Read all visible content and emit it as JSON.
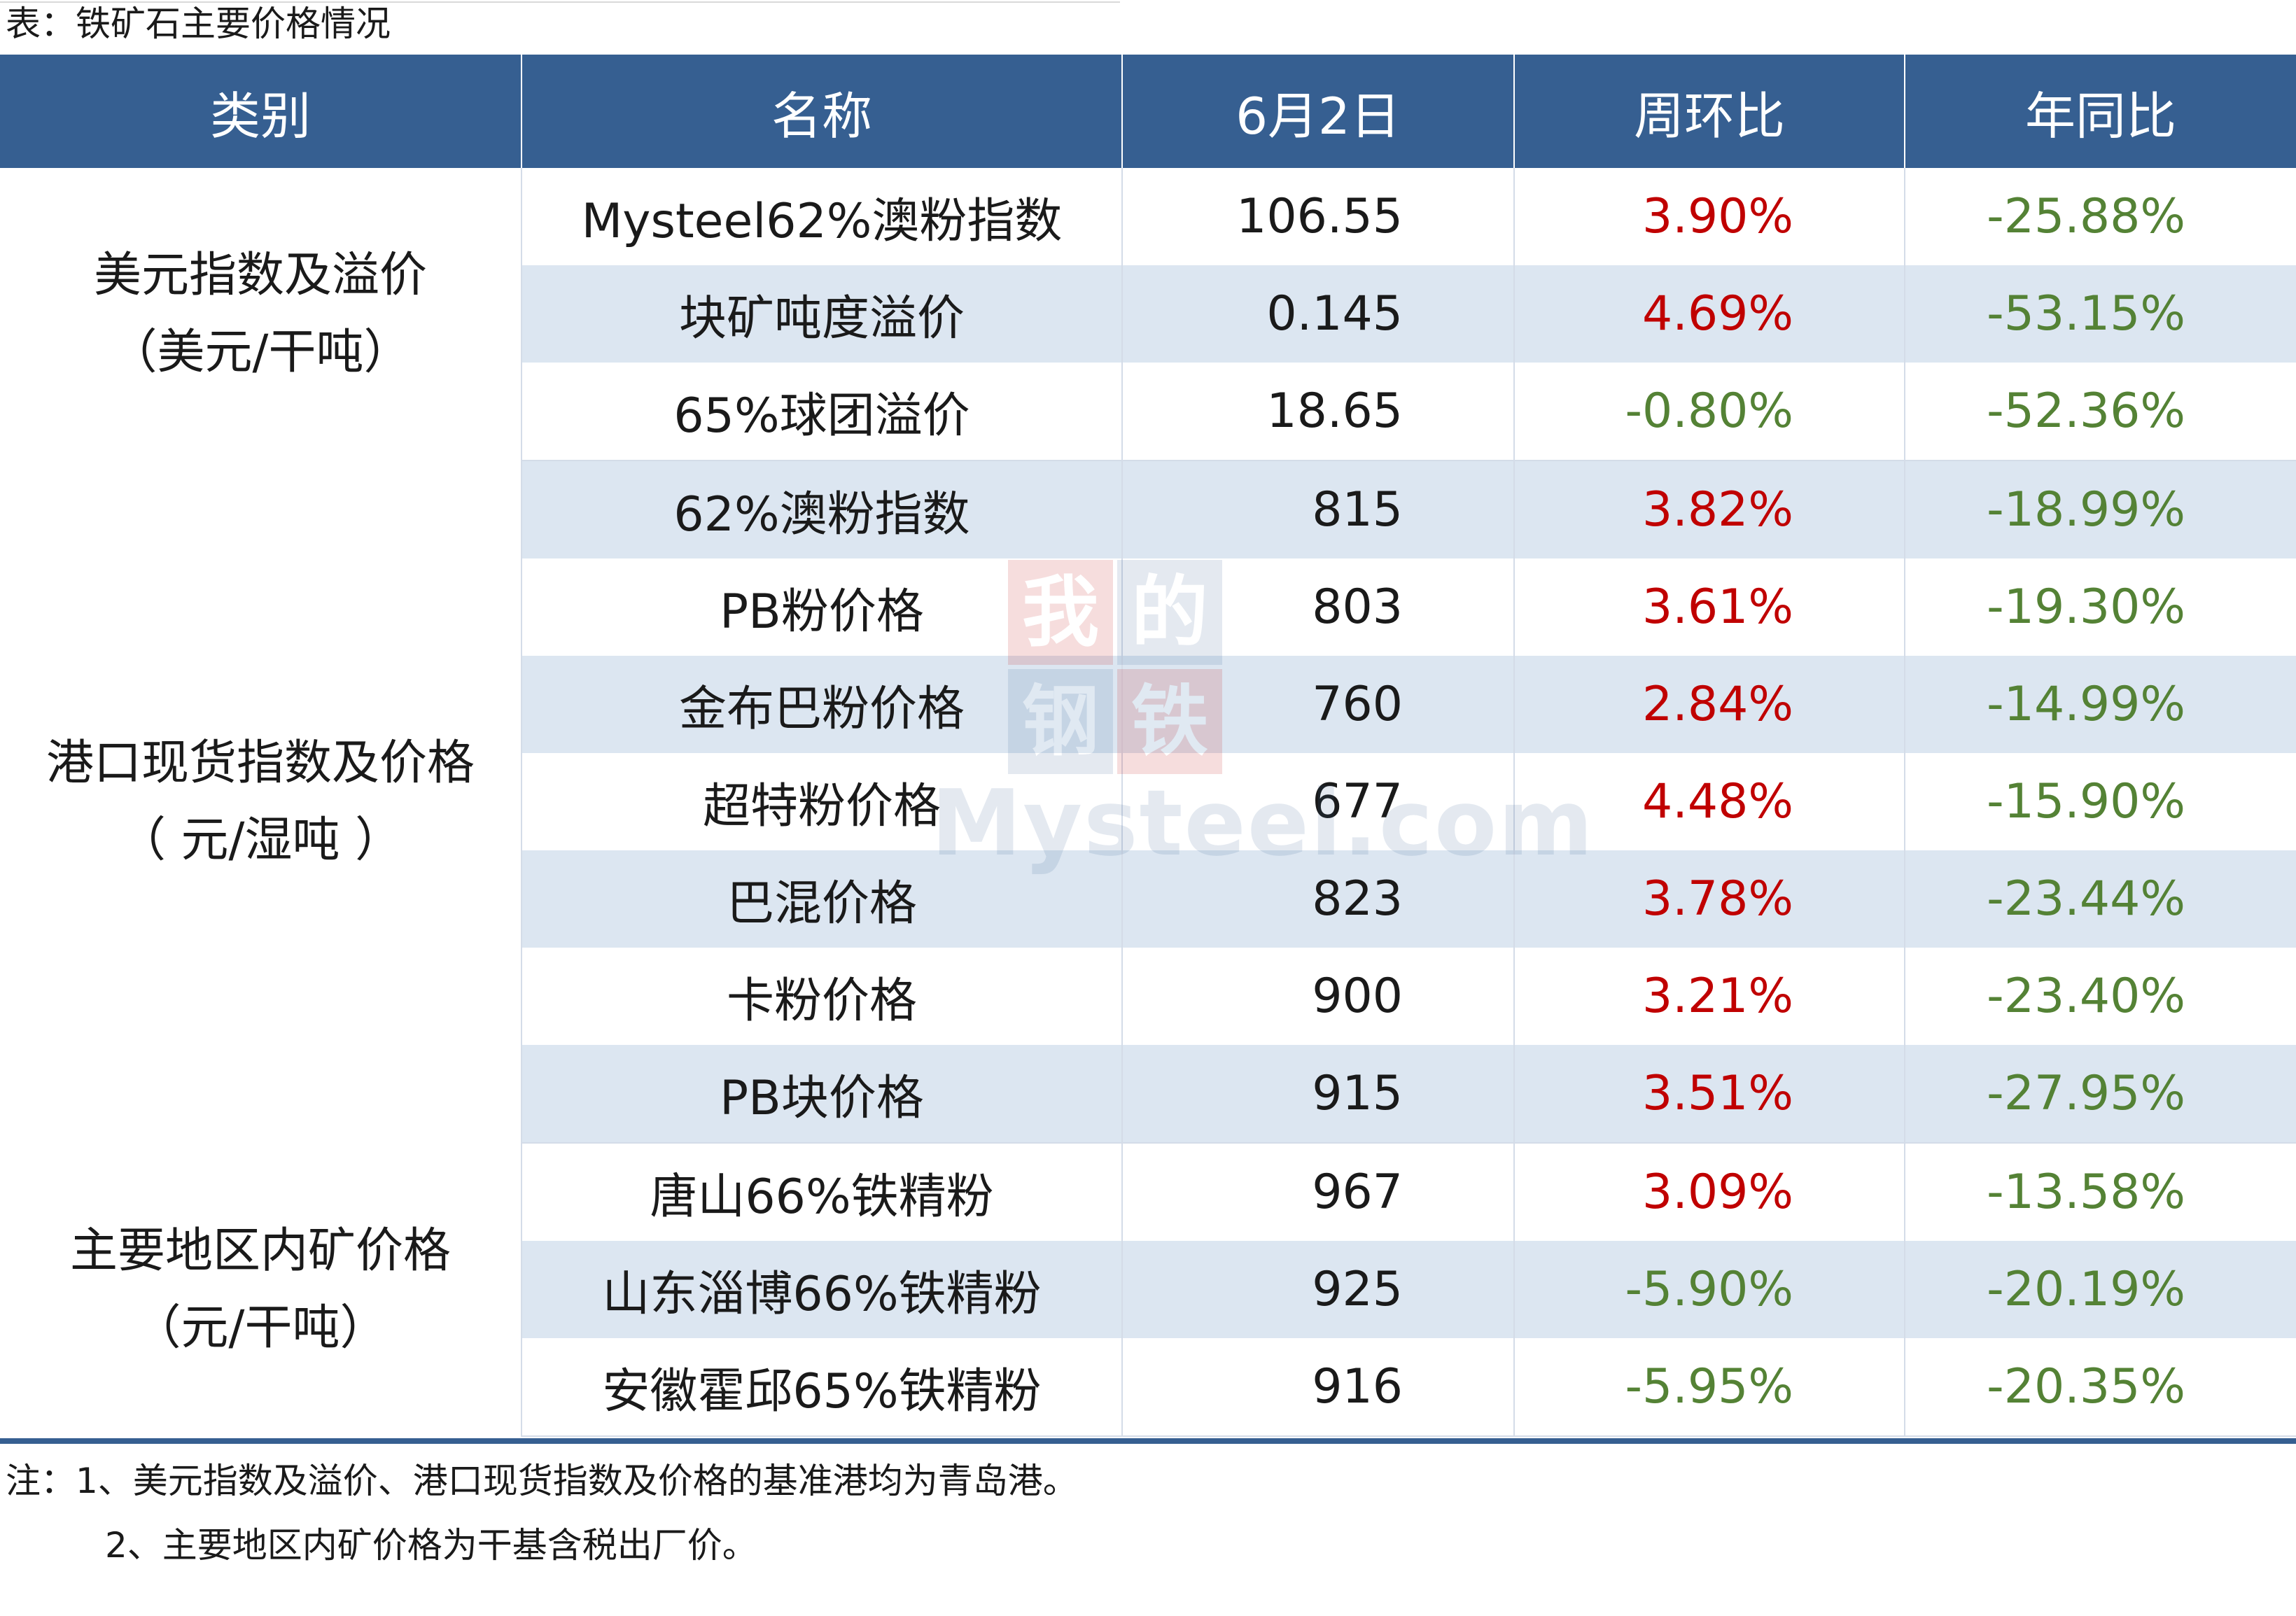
{
  "caption": "表：铁矿石主要价格情况",
  "headers": [
    "类别",
    "名称",
    "6月2日",
    "周环比",
    "年同比"
  ],
  "groups": [
    {
      "category_line1": "美元指数及溢价",
      "category_line2": "（美元/干吨）",
      "rows": [
        {
          "name": "Mysteel62%澳粉指数",
          "value": "106.55",
          "wow": "3.90%",
          "yoy": "-25.88%"
        },
        {
          "name": "块矿吨度溢价",
          "value": "0.145",
          "wow": "4.69%",
          "yoy": "-53.15%"
        },
        {
          "name": "65%球团溢价",
          "value": "18.65",
          "wow": "-0.80%",
          "yoy": "-52.36%"
        }
      ]
    },
    {
      "category_line1": "港口现货指数及价格",
      "category_line2": "（ 元/湿吨 ）",
      "rows": [
        {
          "name": "62%澳粉指数",
          "value": "815",
          "wow": "3.82%",
          "yoy": "-18.99%"
        },
        {
          "name": "PB粉价格",
          "value": "803",
          "wow": "3.61%",
          "yoy": "-19.30%"
        },
        {
          "name": "金布巴粉价格",
          "value": "760",
          "wow": "2.84%",
          "yoy": "-14.99%"
        },
        {
          "name": "超特粉价格",
          "value": "677",
          "wow": "4.48%",
          "yoy": "-15.90%"
        },
        {
          "name": "巴混价格",
          "value": "823",
          "wow": "3.78%",
          "yoy": "-23.44%"
        },
        {
          "name": "卡粉价格",
          "value": "900",
          "wow": "3.21%",
          "yoy": "-23.40%"
        },
        {
          "name": "PB块价格",
          "value": "915",
          "wow": "3.51%",
          "yoy": "-27.95%"
        }
      ]
    },
    {
      "category_line1": "主要地区内矿价格",
      "category_line2": "（元/干吨）",
      "rows": [
        {
          "name": "唐山66%铁精粉",
          "value": "967",
          "wow": "3.09%",
          "yoy": "-13.58%"
        },
        {
          "name": "山东淄博66%铁精粉",
          "value": "925",
          "wow": "-5.90%",
          "yoy": "-20.19%"
        },
        {
          "name": "安徽霍邱65%铁精粉",
          "value": "916",
          "wow": "-5.95%",
          "yoy": "-20.35%"
        }
      ]
    }
  ],
  "notes": [
    "注：1、美元指数及溢价、港口现货指数及价格的基准港均为青岛港。",
    "2、主要地区内矿价格为干基含税出厂价。"
  ],
  "watermark": {
    "chars": [
      "我",
      "的",
      "钢",
      "铁"
    ],
    "brand": "Mysteel.com"
  },
  "colors": {
    "header_bg": "#365f91",
    "alt_row_bg": "#dce6f1",
    "positive_change": "#c00000",
    "negative_change": "#548235"
  }
}
